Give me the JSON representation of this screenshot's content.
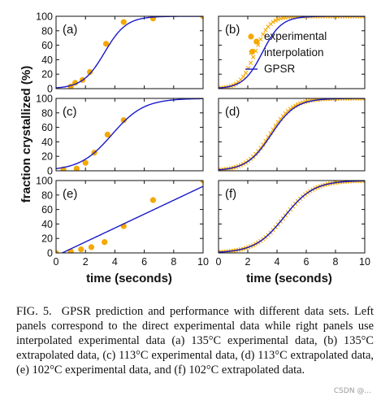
{
  "figure": {
    "ylabel": "fraction crystallized (%)",
    "xlabel_left": "time (seconds)",
    "xlabel_right": "time (seconds)",
    "caption_label": "FIG. 5.",
    "caption_text": "GPSR prediction and performance with different data sets. Left panels correspond to the direct experimental data while right panels use interpolated experimental data (a) 135°C experimental data, (b) 135°C extrapolated data, (c) 113°C experimental data, (d) 113°C extrapolated data, (e) 102°C experimental data, and (f) 102°C extrapolated data.",
    "watermark": "CSDN @..."
  },
  "colors": {
    "experimental": "#f5a800",
    "interpolation": "#f5a800",
    "gpsr": "#1a1ac8"
  },
  "legend": {
    "experimental": "experimental",
    "interpolation": "interpolation",
    "gpsr": "GPSR",
    "placement": "right, panel (b)"
  },
  "chart_data": [
    {
      "panel": "(a)",
      "type": "scatter+line",
      "xlim": [
        0,
        10
      ],
      "ylim": [
        0,
        100
      ],
      "xticks": [
        "0",
        "2",
        "4",
        "6",
        "8",
        "10"
      ],
      "yticks": [
        "0",
        "20",
        "40",
        "60",
        "80",
        "100"
      ],
      "experimental": {
        "x": [
          1.0,
          1.3,
          1.8,
          2.3,
          3.4,
          4.6,
          6.6,
          10.0
        ],
        "y": [
          3,
          8,
          12,
          23,
          62,
          92,
          97,
          100
        ]
      },
      "gpsr": {
        "model": "sigmoid",
        "x0": 3.3,
        "k": 1.35,
        "min": 0,
        "max": 100
      }
    },
    {
      "panel": "(b)",
      "type": "scatter+line",
      "xlim": [
        0,
        10
      ],
      "ylim": [
        0,
        100
      ],
      "xticks": [
        "0",
        "2",
        "4",
        "6",
        "8",
        "10"
      ],
      "yticks": [
        "0",
        "20",
        "40",
        "60",
        "80",
        "100"
      ],
      "experimental": {
        "x": [
          2.3,
          2.6
        ],
        "y": [
          51,
          65
        ]
      },
      "interpolation": {
        "model": "sigmoid",
        "x0": 2.5,
        "k": 2.0,
        "min": 0,
        "max": 100,
        "x_from": 0,
        "x_to": 10,
        "n": 60
      },
      "gpsr": {
        "model": "sigmoid",
        "x0": 3.0,
        "k": 1.55,
        "min": 0,
        "max": 100
      }
    },
    {
      "panel": "(c)",
      "type": "scatter+line",
      "xlim": [
        0,
        10
      ],
      "ylim": [
        0,
        100
      ],
      "xticks": [
        "0",
        "2",
        "4",
        "6",
        "8",
        "10"
      ],
      "yticks": [
        "0",
        "20",
        "40",
        "60",
        "80",
        "100"
      ],
      "experimental": {
        "x": [
          0.5,
          1.4,
          2.0,
          2.6,
          3.5,
          4.6
        ],
        "y": [
          2,
          3,
          11,
          25,
          50,
          70
        ]
      },
      "gpsr": {
        "model": "sigmoid",
        "x0": 3.8,
        "k": 0.92,
        "min": 0,
        "max": 100
      }
    },
    {
      "panel": "(d)",
      "type": "scatter+line",
      "xlim": [
        0,
        10
      ],
      "ylim": [
        0,
        100
      ],
      "xticks": [
        "0",
        "2",
        "4",
        "6",
        "8",
        "10"
      ],
      "yticks": [
        "0",
        "20",
        "40",
        "60",
        "80",
        "100"
      ],
      "interpolation": {
        "model": "sigmoid",
        "x0": 3.5,
        "k": 1.25,
        "min": 0,
        "max": 100,
        "x_from": 0,
        "x_to": 10,
        "n": 60
      },
      "gpsr": {
        "model": "sigmoid",
        "x0": 3.6,
        "k": 1.2,
        "min": 0,
        "max": 100
      }
    },
    {
      "panel": "(e)",
      "type": "scatter+line",
      "xlim": [
        0,
        10
      ],
      "ylim": [
        0,
        100
      ],
      "xticks": [
        "0",
        "2",
        "4",
        "6",
        "8",
        "10"
      ],
      "yticks": [
        "0",
        "20",
        "40",
        "60",
        "80",
        "100"
      ],
      "experimental": {
        "x": [
          0.0,
          1.0,
          1.7,
          2.4,
          3.3,
          4.6,
          6.6,
          10.0
        ],
        "y": [
          0,
          2,
          5,
          8,
          15,
          37,
          73,
          100
        ]
      },
      "gpsr": {
        "model": "linear",
        "x": [
          0,
          10
        ],
        "y": [
          -4,
          92
        ]
      }
    },
    {
      "panel": "(f)",
      "type": "scatter+line",
      "xlim": [
        0,
        10
      ],
      "ylim": [
        0,
        100
      ],
      "xticks": [
        "0",
        "2",
        "4",
        "6",
        "8",
        "10"
      ],
      "yticks": [
        "0",
        "20",
        "40",
        "60",
        "80",
        "100"
      ],
      "interpolation": {
        "model": "sigmoid",
        "x0": 4.5,
        "k": 1.0,
        "min": 0,
        "max": 100,
        "x_from": 0,
        "x_to": 10,
        "n": 60
      },
      "gpsr": {
        "model": "sigmoid",
        "x0": 4.5,
        "k": 1.0,
        "min": 0,
        "max": 100
      }
    }
  ]
}
